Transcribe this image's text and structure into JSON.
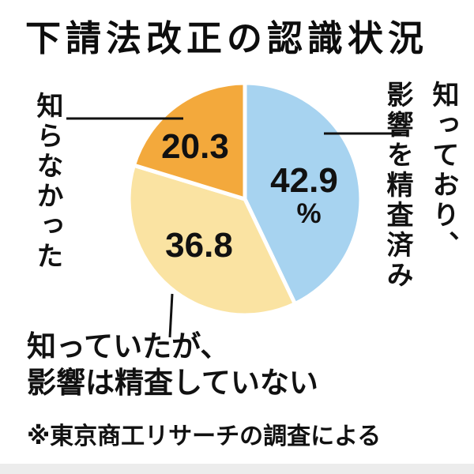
{
  "page": {
    "title": "下請法改正の認識状況",
    "source_note": "※東京商工リサーチの調査による"
  },
  "chart_data": {
    "type": "pie",
    "title": "下請法改正の認識状況",
    "unit": "%",
    "direction": "clockwise",
    "start_angle": "top",
    "slices": [
      {
        "label": "知っており、影響を精査済み",
        "value": 42.9,
        "value_display": "42.9",
        "color": "#a7d3f0"
      },
      {
        "label": "知っていたが、影響は精査していない",
        "value": 36.8,
        "value_display": "36.8",
        "color": "#fae3a2"
      },
      {
        "label": "知らなかった",
        "value": 20.3,
        "value_display": "20.3",
        "color": "#f3a93c"
      }
    ],
    "source": "※東京商工リサーチの調査による"
  },
  "labels": {
    "left": "知らなかった",
    "right_col1": "知っており、",
    "right_col2": "影響を精査済み",
    "bottom_line1": "知っていたが、",
    "bottom_line2": "影響は精査していない"
  }
}
